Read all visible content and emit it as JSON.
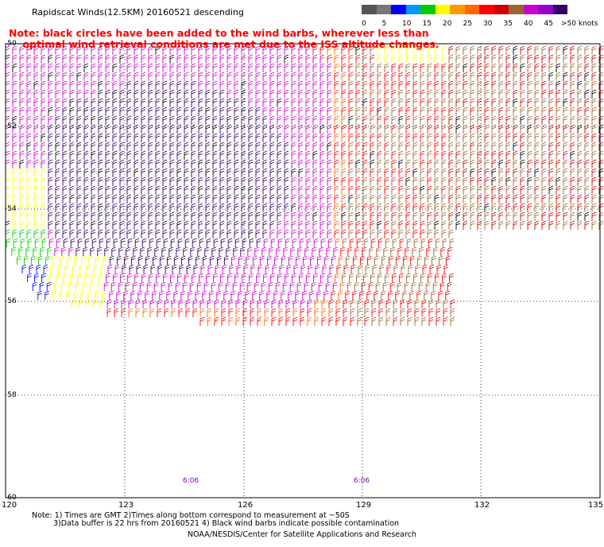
{
  "title": "Rapidscat Winds(12.5KM) 20160521 descending",
  "note": {
    "line1": "Note: black circles have been added to the wind barbs, wherever less than",
    "line2": "optimal wind retrieval conditions are met due to the ISS altitude changes."
  },
  "legend": {
    "unit": ">50 knots",
    "ticks": [
      "0",
      "5",
      "10",
      "15",
      "20",
      "25",
      "30",
      "35",
      "40",
      "45"
    ],
    "colors": [
      "#555555",
      "#777777",
      "#0000ff",
      "#0099ff",
      "#00cc00",
      "#ffff00",
      "#ff9900",
      "#ff6600",
      "#ff0000",
      "#cc0000",
      "#996633",
      "#cc00cc",
      "#9900cc",
      "#330066"
    ]
  },
  "y_labels": [
    "-50",
    "-52",
    "-54",
    "-56",
    "-58",
    "-60"
  ],
  "x_labels": [
    "120",
    "123",
    "126",
    "129",
    "132",
    "135"
  ],
  "time_labels": [
    "6:06",
    "6:06"
  ],
  "footer": {
    "line1": "Note: 1) Times are GMT 2)Times along bottom correspond to measurement at ~50S",
    "line2": "3)Data buffer is 22 hrs from 20160521 4) Black wind barbs indicate possible contamination",
    "credit": "NOAA/NESDIS/Center for Satellite Applications and Research"
  }
}
